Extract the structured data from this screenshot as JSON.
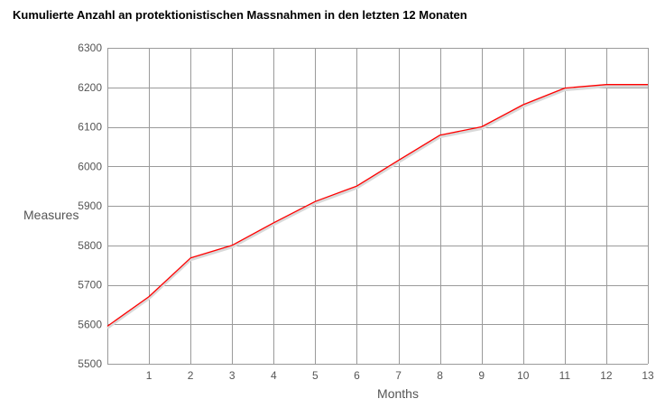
{
  "chart_data": {
    "type": "line",
    "title": "Kumulierte Anzahl an protektionistischen Massnahmen in den letzten 12 Monaten",
    "xlabel": "Months",
    "ylabel": "Measures",
    "x": [
      0,
      1,
      2,
      3,
      4,
      5,
      6,
      7,
      8,
      9,
      10,
      11,
      12,
      13
    ],
    "x_tick_labels": [
      "1",
      "2",
      "3",
      "4",
      "5",
      "6",
      "7",
      "8",
      "9",
      "10",
      "11",
      "12",
      "13"
    ],
    "y_tick_labels": [
      "5500",
      "5600",
      "5700",
      "5800",
      "5900",
      "6000",
      "6100",
      "6200",
      "6300"
    ],
    "series": [
      {
        "values": [
          5595,
          5670,
          5768,
          5800,
          5857,
          5911,
          5950,
          6015,
          6079,
          6100,
          6156,
          6198,
          6207,
          6207
        ]
      }
    ],
    "xlim": [
      0,
      13
    ],
    "ylim": [
      5500,
      6300
    ],
    "grid": true,
    "colors": {
      "line": "#ff0000",
      "grid": "#9a9a9a",
      "shadow": "#d9d9d9"
    }
  }
}
